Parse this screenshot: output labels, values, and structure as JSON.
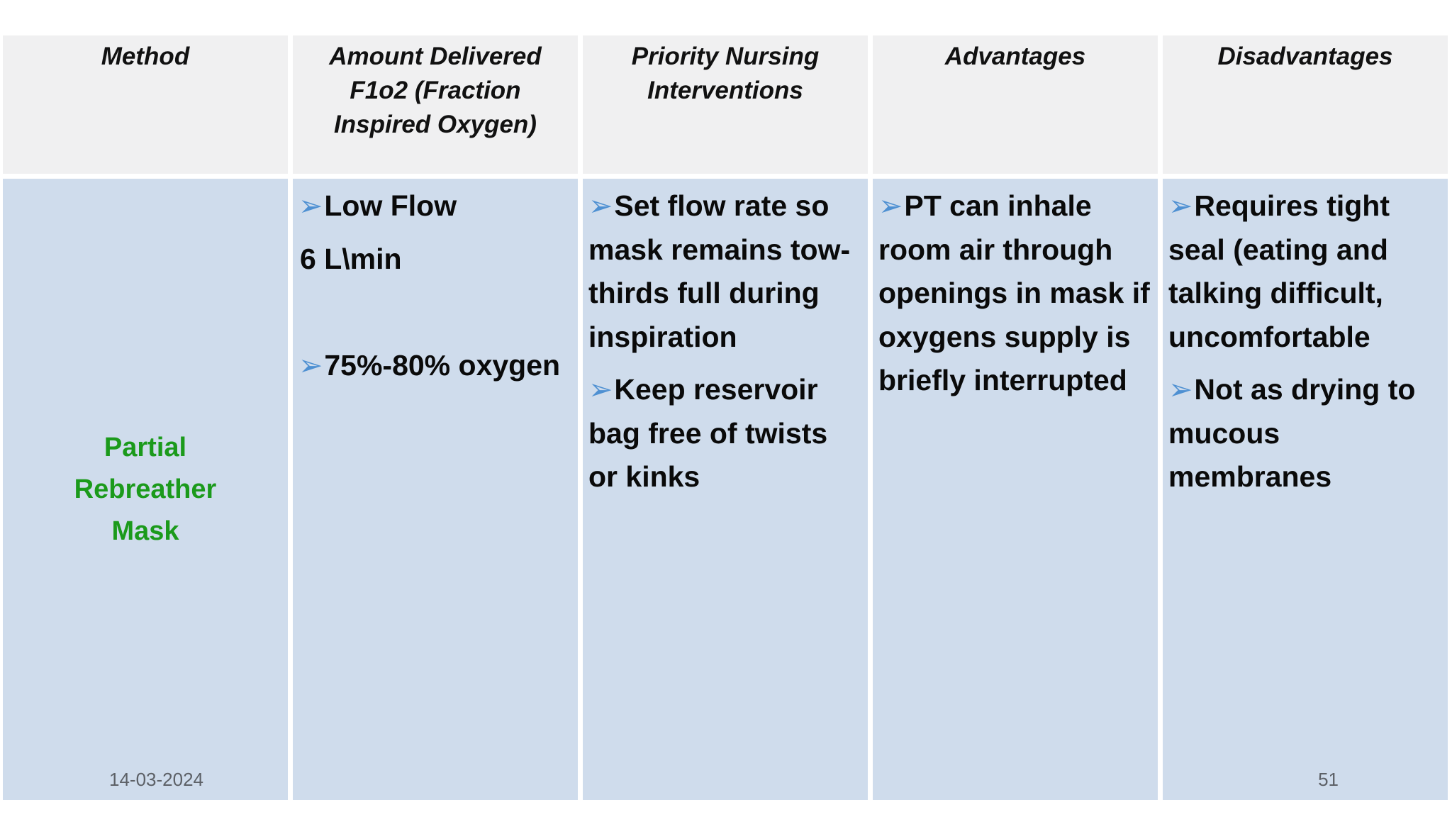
{
  "header": {
    "cells": [
      {
        "lines": [
          "Method"
        ]
      },
      {
        "lines": [
          "Amount Delivered",
          "F1o2   (Fraction",
          "Inspired Oxygen)"
        ]
      },
      {
        "lines": [
          "Priority Nursing",
          "Interventions"
        ]
      },
      {
        "lines": [
          "Advantages"
        ]
      },
      {
        "lines": [
          "Disadvantages"
        ]
      }
    ]
  },
  "row": {
    "method": {
      "lines": [
        "Partial",
        "Rebreather",
        "Mask"
      ]
    },
    "amount": {
      "paragraphs": [
        {
          "bullet": "➢",
          "text": "Low Flow"
        },
        {
          "bullet": "",
          "text": "6 L\\min"
        },
        {
          "bullet": "",
          "text": ""
        },
        {
          "bullet": "➢",
          "text": "75%-80% oxygen"
        }
      ]
    },
    "interventions": {
      "paragraphs": [
        {
          "bullet": "➢",
          "text": "Set flow rate so mask remains tow-thirds full during inspiration"
        },
        {
          "bullet": "➢",
          "text": "Keep reservoir bag free of twists or kinks"
        }
      ]
    },
    "advantages": {
      "paragraphs": [
        {
          "bullet": "➢",
          "text": "PT can inhale room air through openings in mask if oxygens supply is briefly interrupted"
        }
      ]
    },
    "disadvantages": {
      "paragraphs": [
        {
          "bullet": "➢",
          "text": "Requires tight seal (eating and talking difficult, uncomfortable"
        },
        {
          "bullet": "➢",
          "text": "Not as drying to mucous membranes"
        }
      ]
    }
  },
  "footer": {
    "date": "14-03-2024",
    "slide_number": "51"
  },
  "colors": {
    "header_bg": "#f0f0f1",
    "row_bg": "#cfdcec",
    "method_green": "#1b9a1b",
    "bullet_blue": "#4e90d2",
    "footer_gray": "#5d6167"
  }
}
